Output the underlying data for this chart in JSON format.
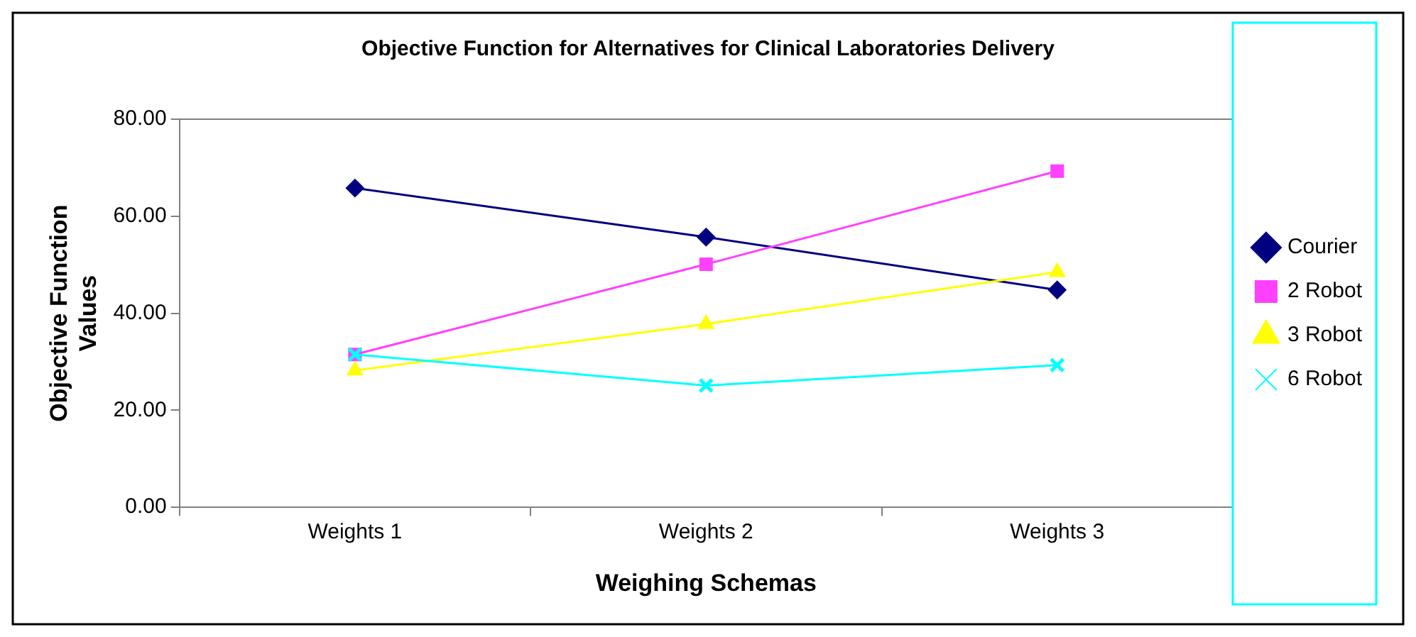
{
  "chart_data": {
    "type": "line",
    "title": "Objective Function for Alternatives for Clinical Laboratories Delivery",
    "xlabel": "Weighing Schemas",
    "ylabel": "Objective Function Values",
    "categories": [
      "Weights 1",
      "Weights 2",
      "Weights 3"
    ],
    "series": [
      {
        "name": "Courier",
        "color": "#000080",
        "marker": "diamond",
        "values": [
          65.8,
          55.7,
          44.8
        ]
      },
      {
        "name": "2 Robot",
        "color": "#ff40ff",
        "marker": "square",
        "values": [
          31.5,
          50.1,
          69.3
        ]
      },
      {
        "name": "3 Robot",
        "color": "#ffff00",
        "marker": "triangle",
        "values": [
          28.2,
          37.8,
          48.5
        ]
      },
      {
        "name": "6 Robot",
        "color": "#00ffff",
        "marker": "cross",
        "values": [
          31.5,
          25.1,
          29.3
        ]
      }
    ],
    "ylim": [
      0,
      80
    ],
    "yticks": [
      {
        "value": 0,
        "label": "0.00"
      },
      {
        "value": 20,
        "label": "20.00"
      },
      {
        "value": 40,
        "label": "40.00"
      },
      {
        "value": 60,
        "label": "60.00"
      },
      {
        "value": 80,
        "label": "80.00"
      }
    ],
    "grid": false,
    "legend": "right",
    "line_style": "solid"
  }
}
